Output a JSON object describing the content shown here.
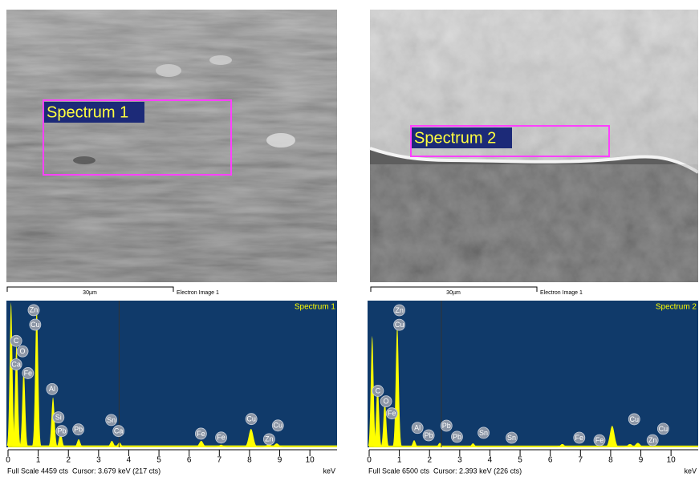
{
  "panels": [
    {
      "image": {
        "spectrum_label": "Spectrum 1",
        "scale_bar": "30µm",
        "caption": "Electron Image 1"
      },
      "chart": {
        "type": "spectrum",
        "title": "Spectrum 1",
        "xlim": [
          0,
          10.9
        ],
        "xticks": [
          0,
          1,
          2,
          3,
          4,
          5,
          6,
          7,
          8,
          9,
          10
        ],
        "x_unit": "keV",
        "ylim": [
          0,
          4459
        ],
        "cursor": 3.679,
        "background": 60,
        "color": "#ffff00",
        "peaks": [
          {
            "kev": 0.1,
            "counts": 4459
          },
          {
            "kev": 0.28,
            "counts": 3150
          },
          {
            "kev": 0.52,
            "counts": 2400
          },
          {
            "kev": 0.95,
            "counts": 4310
          },
          {
            "kev": 1.49,
            "counts": 1540
          },
          {
            "kev": 1.74,
            "counts": 450
          },
          {
            "kev": 2.34,
            "counts": 250
          },
          {
            "kev": 3.44,
            "counts": 200
          },
          {
            "kev": 3.69,
            "counts": 150
          },
          {
            "kev": 6.4,
            "counts": 200
          },
          {
            "kev": 7.06,
            "counts": 80
          },
          {
            "kev": 8.05,
            "counts": 570
          },
          {
            "kev": 8.64,
            "counts": 100
          },
          {
            "kev": 8.9,
            "counts": 120
          }
        ],
        "labels": [
          {
            "text": "Zn",
            "kev": 0.85,
            "counts": 4216
          },
          {
            "text": "Cu",
            "kev": 0.9,
            "counts": 3770
          },
          {
            "text": "C",
            "kev": 0.27,
            "counts": 3270
          },
          {
            "text": "O",
            "kev": 0.48,
            "counts": 2950
          },
          {
            "text": "Ca",
            "kev": 0.27,
            "counts": 2550
          },
          {
            "text": "Fe",
            "kev": 0.66,
            "counts": 2280
          },
          {
            "text": "Al",
            "kev": 1.46,
            "counts": 1790
          },
          {
            "text": "Si",
            "kev": 1.67,
            "counts": 920
          },
          {
            "text": "Pb",
            "kev": 1.78,
            "counts": 500
          },
          {
            "text": "Pb",
            "kev": 2.33,
            "counts": 550
          },
          {
            "text": "Sn",
            "kev": 3.42,
            "counts": 840
          },
          {
            "text": "Ca",
            "kev": 3.66,
            "counts": 500
          },
          {
            "text": "Fe",
            "kev": 6.39,
            "counts": 420
          },
          {
            "text": "Fe",
            "kev": 7.06,
            "counts": 300
          },
          {
            "text": "Cu",
            "kev": 8.06,
            "counts": 870
          },
          {
            "text": "Cu",
            "kev": 8.94,
            "counts": 670
          },
          {
            "text": "Zn",
            "kev": 8.65,
            "counts": 250
          }
        ],
        "footer": "Full Scale 4459 cts  Cursor: 3.679 keV (217 cts)"
      }
    },
    {
      "image": {
        "spectrum_label": "Spectrum 2",
        "scale_bar": "30µm",
        "caption": "Electron Image 1"
      },
      "chart": {
        "type": "spectrum",
        "title": "Spectrum 2",
        "xlim": [
          0,
          10.9
        ],
        "xticks": [
          0,
          1,
          2,
          3,
          4,
          5,
          6,
          7,
          8,
          9,
          10
        ],
        "x_unit": "keV",
        "ylim": [
          0,
          6500
        ],
        "cursor": 2.393,
        "background": 80,
        "color": "#ffff00",
        "peaks": [
          {
            "kev": 0.1,
            "counts": 5000
          },
          {
            "kev": 0.28,
            "counts": 2780
          },
          {
            "kev": 0.52,
            "counts": 2060
          },
          {
            "kev": 0.93,
            "counts": 5490
          },
          {
            "kev": 1.49,
            "counts": 320
          },
          {
            "kev": 2.34,
            "counts": 200
          },
          {
            "kev": 3.44,
            "counts": 180
          },
          {
            "kev": 6.4,
            "counts": 150
          },
          {
            "kev": 8.05,
            "counts": 970
          },
          {
            "kev": 8.64,
            "counts": 150
          },
          {
            "kev": 8.9,
            "counts": 200
          }
        ],
        "labels": [
          {
            "text": "Zn",
            "kev": 1.0,
            "counts": 6140
          },
          {
            "text": "Cu",
            "kev": 1.0,
            "counts": 5490
          },
          {
            "text": "C",
            "kev": 0.29,
            "counts": 2530
          },
          {
            "text": "O",
            "kev": 0.56,
            "counts": 2060
          },
          {
            "text": "Fe",
            "kev": 0.75,
            "counts": 1520
          },
          {
            "text": "Al",
            "kev": 1.6,
            "counts": 870
          },
          {
            "text": "Pb",
            "kev": 1.97,
            "counts": 540
          },
          {
            "text": "Pb",
            "kev": 2.56,
            "counts": 970
          },
          {
            "text": "Pb",
            "kev": 2.91,
            "counts": 470
          },
          {
            "text": "Sn",
            "kev": 3.79,
            "counts": 650
          },
          {
            "text": "Sn",
            "kev": 4.72,
            "counts": 430
          },
          {
            "text": "Fe",
            "kev": 6.96,
            "counts": 430
          },
          {
            "text": "Fe",
            "kev": 7.63,
            "counts": 320
          },
          {
            "text": "Cu",
            "kev": 8.78,
            "counts": 1260
          },
          {
            "text": "Cu",
            "kev": 9.74,
            "counts": 830
          },
          {
            "text": "Zn",
            "kev": 9.39,
            "counts": 320
          }
        ],
        "footer": "Full Scale 6500 cts  Cursor: 2.393 keV (226 cts)"
      }
    }
  ]
}
